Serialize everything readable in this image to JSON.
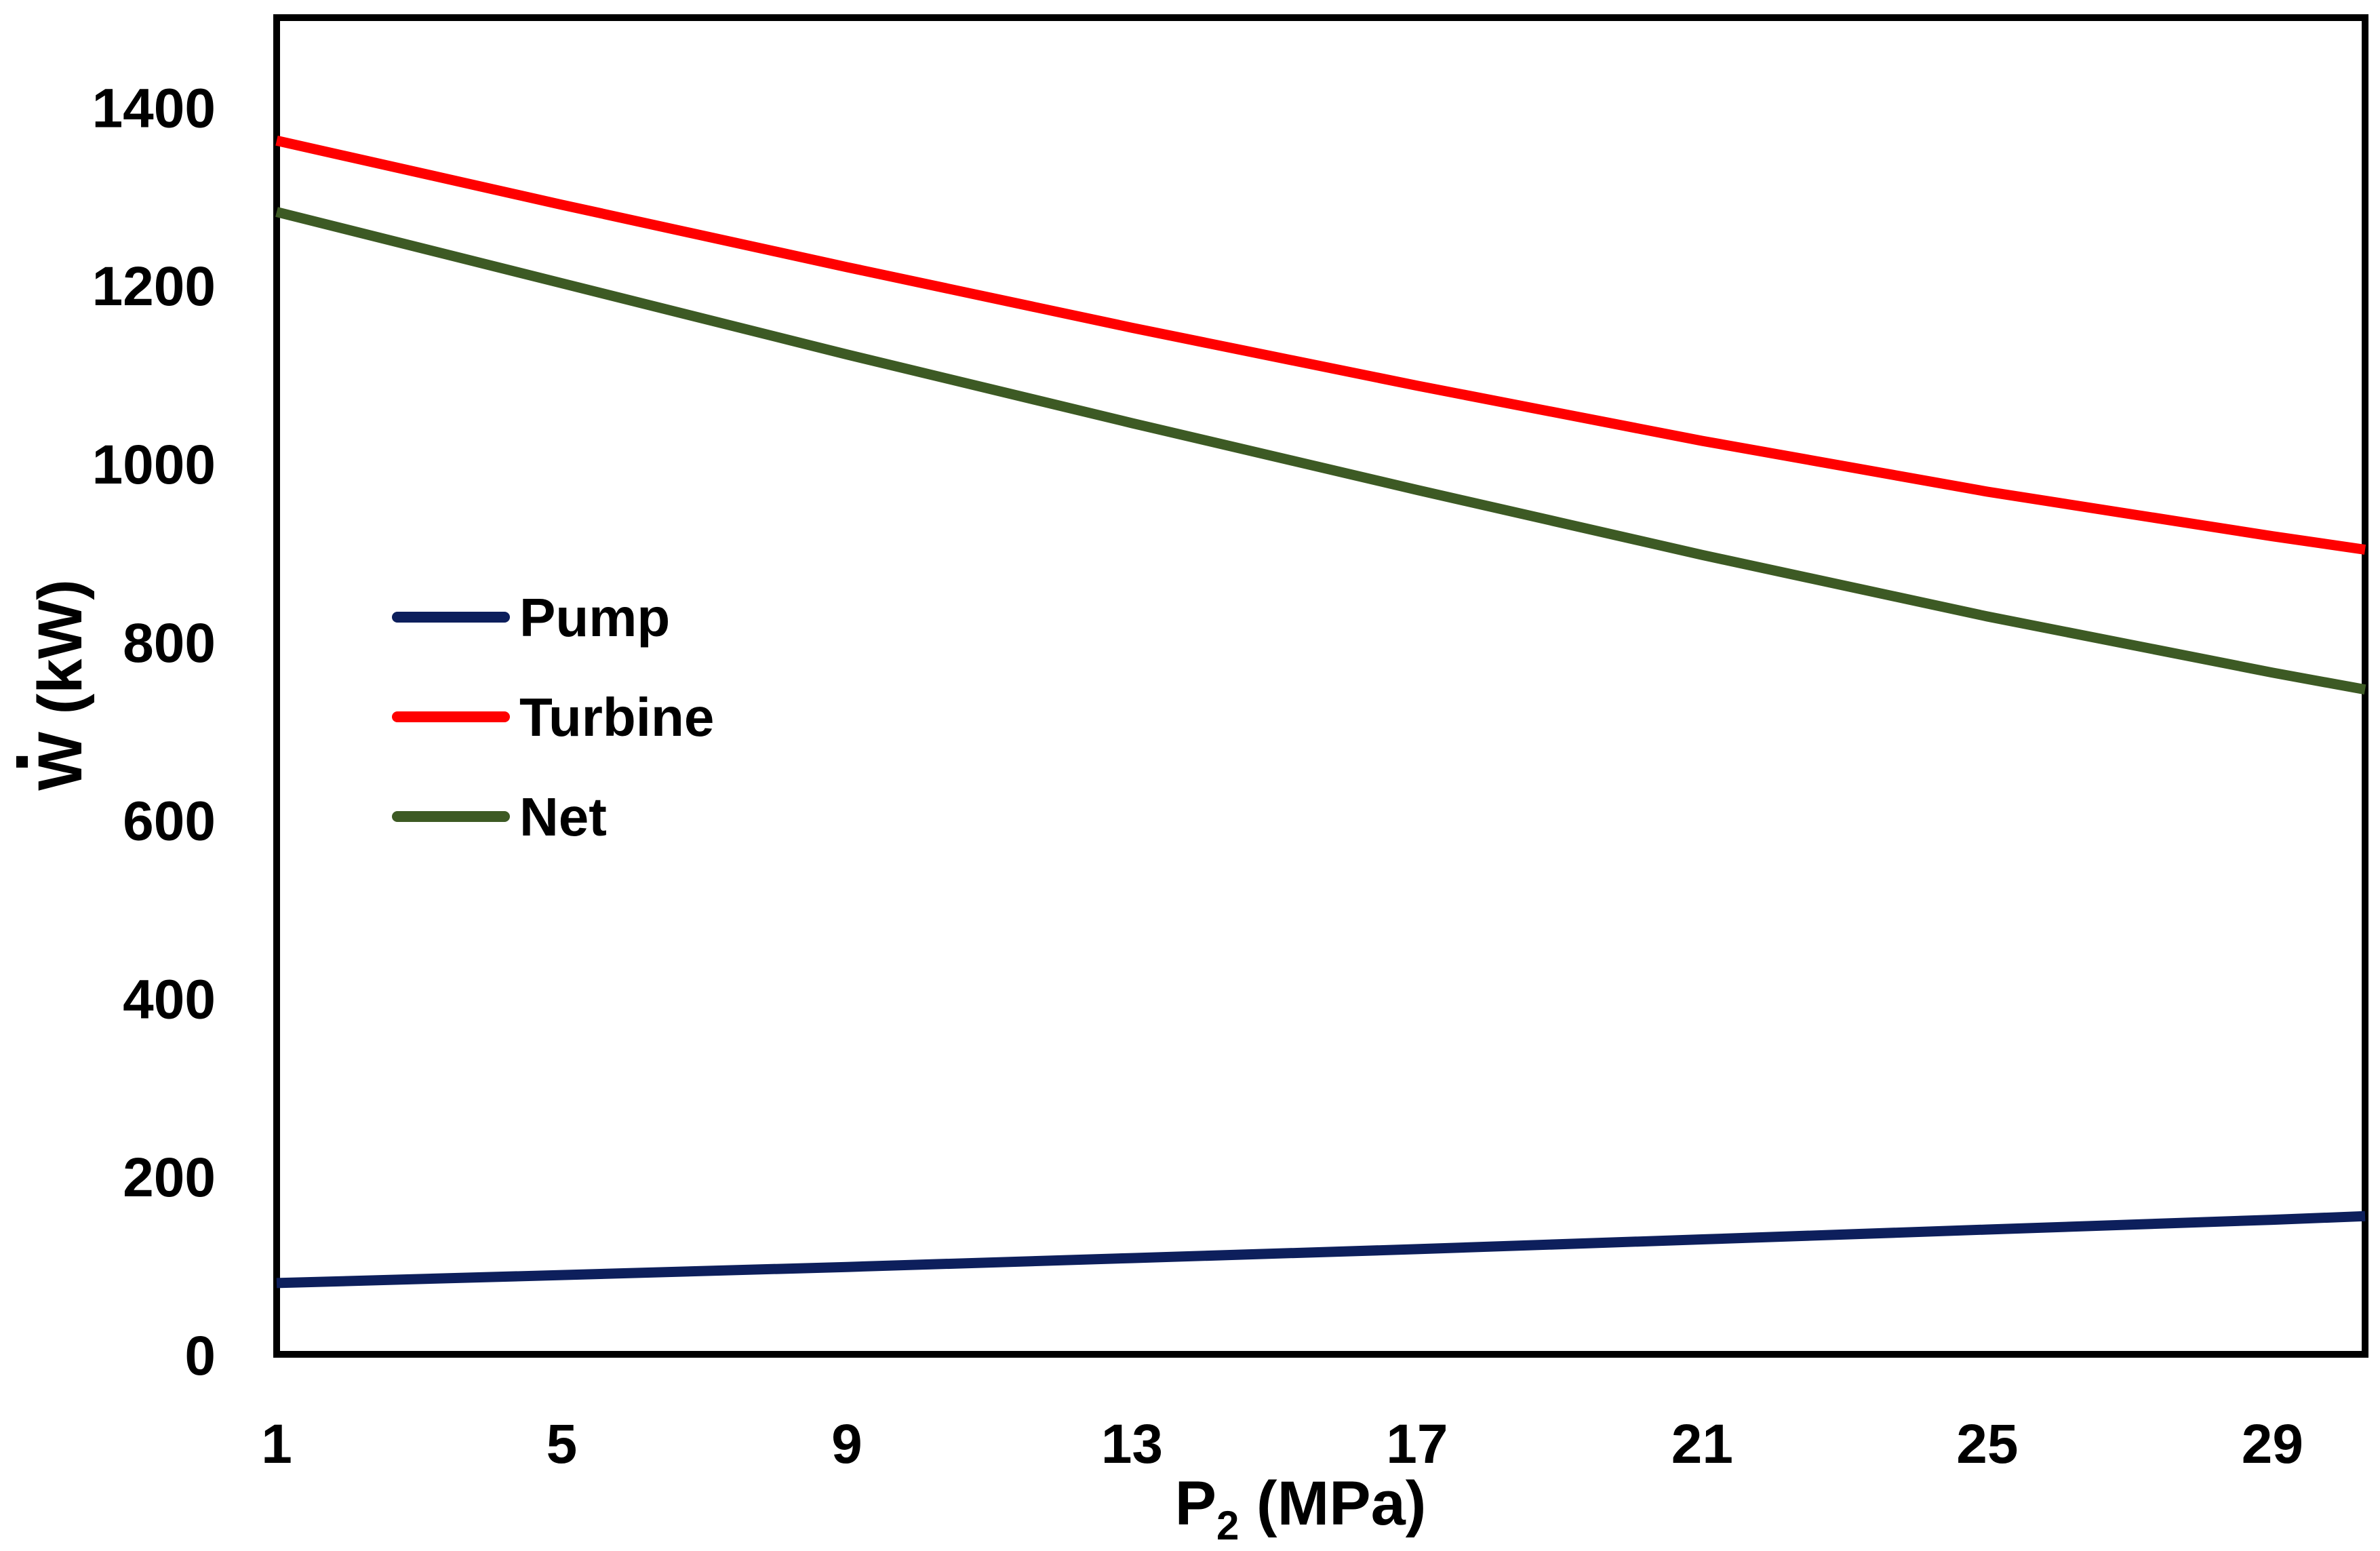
{
  "chart_data": {
    "type": "line",
    "title": "",
    "xlabel": "P",
    "xlabel_subscript": "2",
    "xlabel_unit": " (MPa)",
    "ylabel": "W (kW)",
    "xlim": [
      1,
      30.3
    ],
    "ylim": [
      0,
      1500
    ],
    "xticks": [
      1,
      5,
      9,
      13,
      17,
      21,
      25,
      29
    ],
    "yticks": [
      0,
      200,
      400,
      600,
      800,
      1000,
      1200,
      1400
    ],
    "grid": false,
    "legend_position": "left-middle",
    "series": [
      {
        "name": "Pump",
        "color": "#0d1f5c",
        "x": [
          1,
          5,
          9,
          13,
          17,
          21,
          25,
          29,
          30.3
        ],
        "values": [
          80,
          89,
          98,
          108,
          118,
          129,
          140,
          151,
          155
        ]
      },
      {
        "name": "Turbine",
        "color": "#ff0000",
        "x": [
          1,
          5,
          9,
          13,
          17,
          21,
          25,
          29,
          30.3
        ],
        "values": [
          1362,
          1290,
          1220,
          1152,
          1087,
          1025,
          968,
          918,
          903
        ]
      },
      {
        "name": "Net",
        "color": "#3d5a24",
        "x": [
          1,
          5,
          9,
          13,
          17,
          21,
          25,
          29,
          30.3
        ],
        "values": [
          1282,
          1202,
          1122,
          1045,
          970,
          897,
          828,
          765,
          746
        ]
      }
    ]
  }
}
